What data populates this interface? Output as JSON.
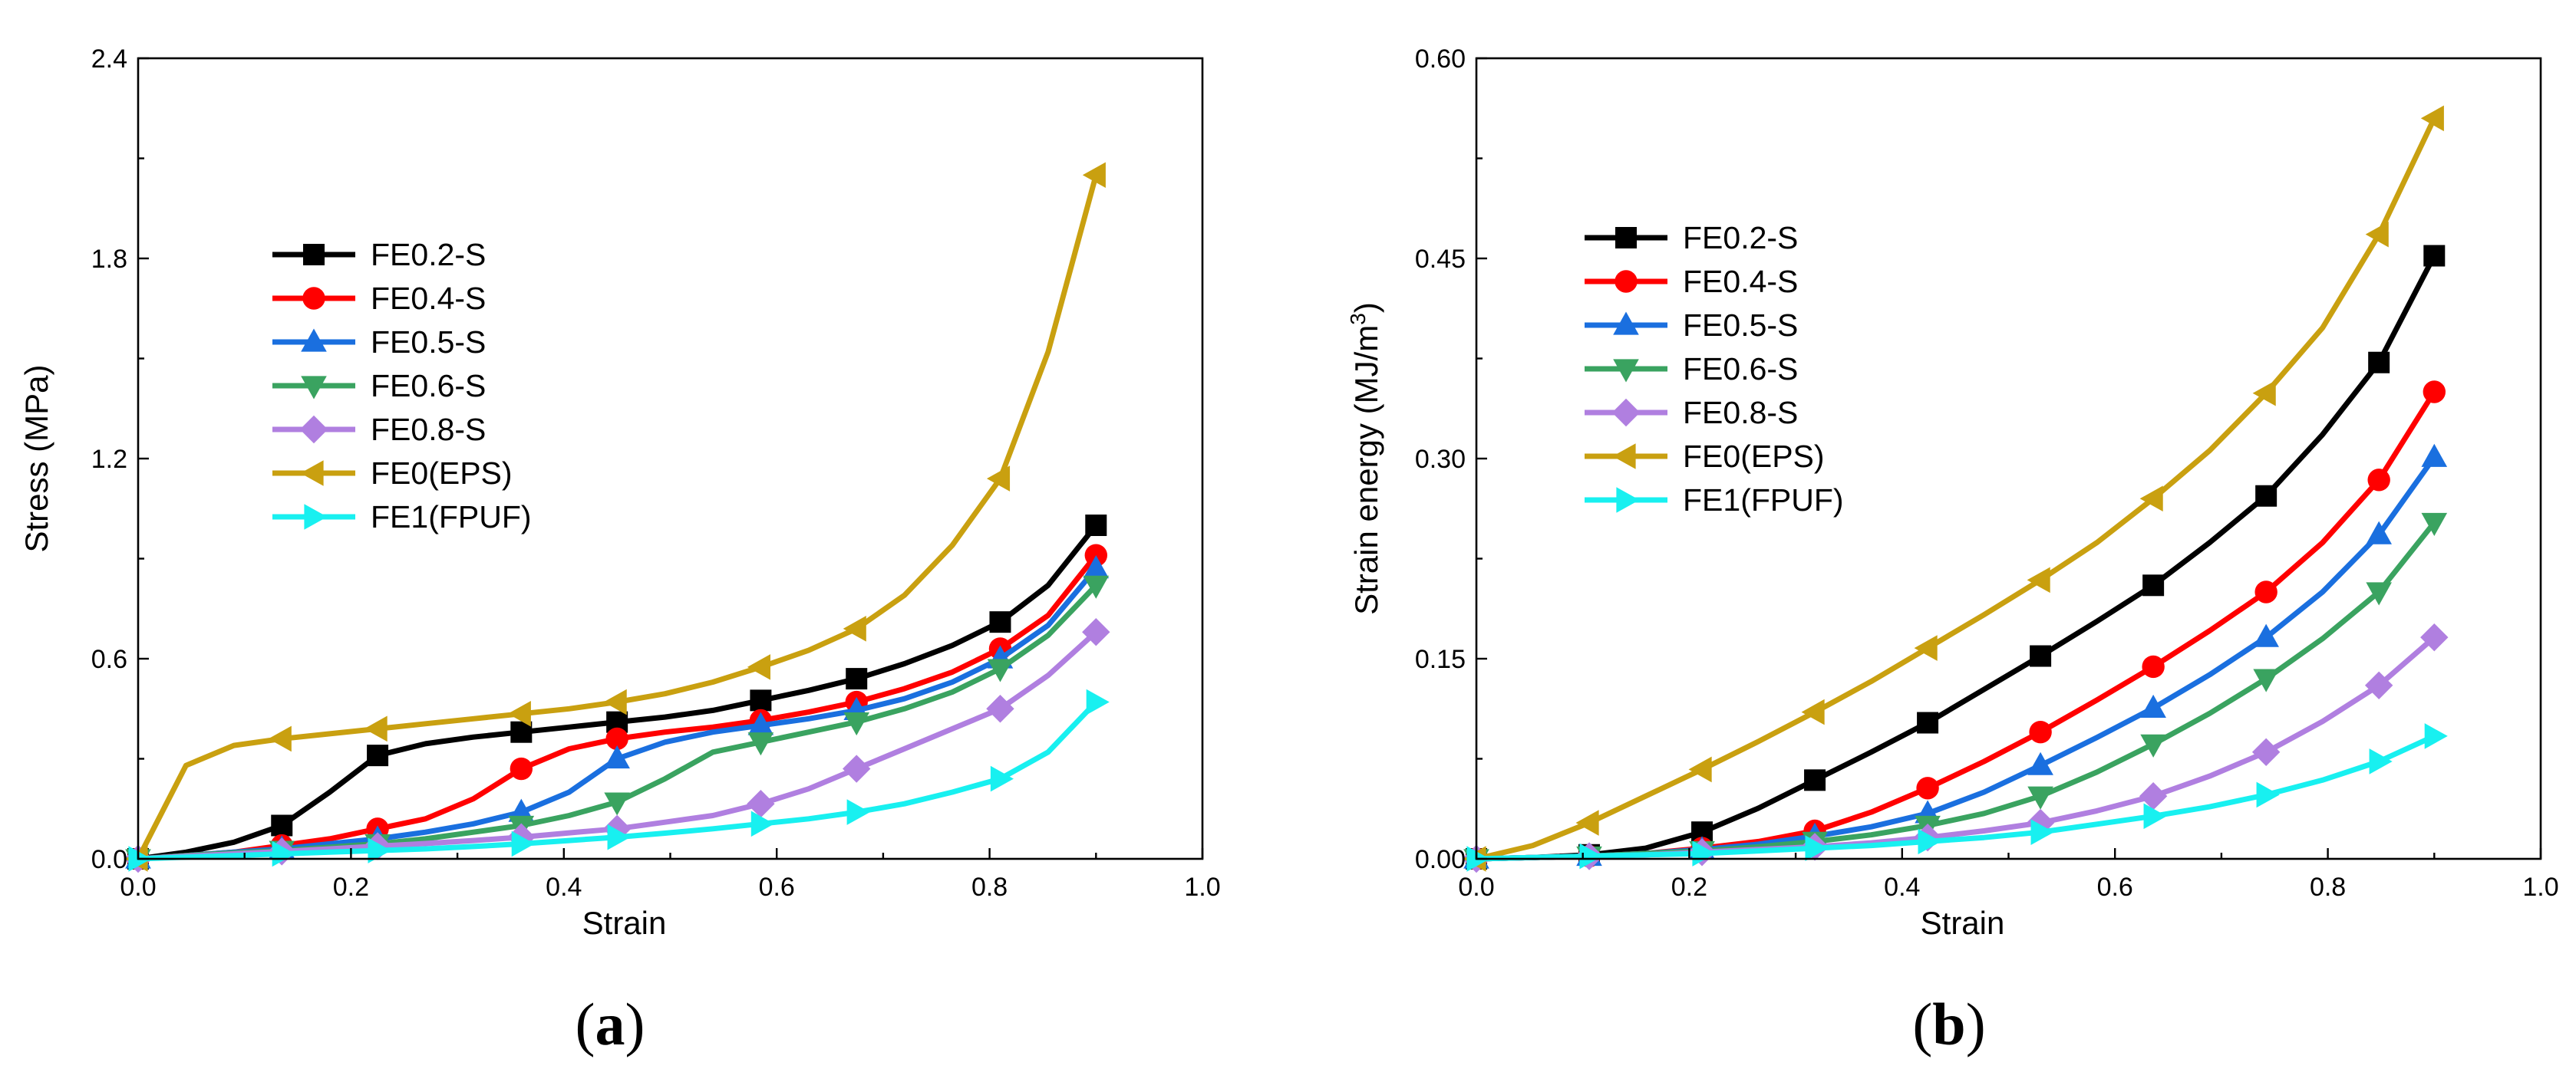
{
  "panels": [
    {
      "id": "a",
      "label_open": "(",
      "label_letter": "a",
      "label_close": ")"
    },
    {
      "id": "b",
      "label_open": "(",
      "label_letter": "b",
      "label_close": ")"
    }
  ],
  "chart_data": [
    {
      "type": "line",
      "panel": "a",
      "title": "",
      "xlabel": "Strain",
      "ylabel": "Stress (MPa)",
      "xlim": [
        0.0,
        1.0
      ],
      "ylim": [
        0.0,
        2.4
      ],
      "xticks": [
        0.0,
        0.2,
        0.4,
        0.6,
        0.8,
        1.0
      ],
      "xtick_labels": [
        "0.0",
        "0.2",
        "0.4",
        "0.6",
        "0.8",
        "1.0"
      ],
      "yticks": [
        0.0,
        0.6,
        1.2,
        1.8,
        2.4
      ],
      "ytick_labels": [
        "0.0",
        "0.6",
        "1.2",
        "1.8",
        "2.4"
      ],
      "legend_position": "upper-left",
      "series": [
        {
          "name": "FE0.2-S",
          "color": "#000000",
          "marker": "square",
          "x": [
            0,
            0.045,
            0.09,
            0.135,
            0.18,
            0.225,
            0.27,
            0.315,
            0.36,
            0.405,
            0.45,
            0.495,
            0.54,
            0.585,
            0.63,
            0.675,
            0.72,
            0.765,
            0.81,
            0.855,
            0.9
          ],
          "y": [
            0,
            0.02,
            0.05,
            0.1,
            0.2,
            0.31,
            0.345,
            0.365,
            0.38,
            0.395,
            0.41,
            0.425,
            0.445,
            0.475,
            0.505,
            0.54,
            0.585,
            0.64,
            0.71,
            0.82,
            1.0
          ],
          "markers": [
            0,
            3,
            5,
            8,
            10,
            13,
            15,
            18,
            20
          ]
        },
        {
          "name": "FE0.4-S",
          "color": "#ff0000",
          "marker": "circle",
          "x": [
            0,
            0.045,
            0.09,
            0.135,
            0.18,
            0.225,
            0.27,
            0.315,
            0.36,
            0.405,
            0.45,
            0.495,
            0.54,
            0.585,
            0.63,
            0.675,
            0.72,
            0.765,
            0.81,
            0.855,
            0.9
          ],
          "y": [
            0,
            0.01,
            0.02,
            0.04,
            0.06,
            0.09,
            0.12,
            0.18,
            0.27,
            0.33,
            0.36,
            0.38,
            0.395,
            0.415,
            0.44,
            0.47,
            0.51,
            0.56,
            0.63,
            0.73,
            0.91
          ],
          "markers": [
            0,
            3,
            5,
            8,
            10,
            13,
            15,
            18,
            20
          ]
        },
        {
          "name": "FE0.5-S",
          "color": "#1a6fdf",
          "marker": "triangle-up",
          "x": [
            0,
            0.045,
            0.09,
            0.135,
            0.18,
            0.225,
            0.27,
            0.315,
            0.36,
            0.405,
            0.45,
            0.495,
            0.54,
            0.585,
            0.63,
            0.675,
            0.72,
            0.765,
            0.81,
            0.855,
            0.9
          ],
          "y": [
            0,
            0.01,
            0.02,
            0.03,
            0.045,
            0.06,
            0.08,
            0.105,
            0.14,
            0.2,
            0.3,
            0.35,
            0.38,
            0.4,
            0.42,
            0.445,
            0.48,
            0.53,
            0.6,
            0.7,
            0.87
          ],
          "markers": [
            0,
            3,
            5,
            8,
            10,
            13,
            15,
            18,
            20
          ]
        },
        {
          "name": "FE0.6-S",
          "color": "#3aa360",
          "marker": "triangle-down",
          "x": [
            0,
            0.045,
            0.09,
            0.135,
            0.18,
            0.225,
            0.27,
            0.315,
            0.36,
            0.405,
            0.45,
            0.495,
            0.54,
            0.585,
            0.63,
            0.675,
            0.72,
            0.765,
            0.81,
            0.855,
            0.9
          ],
          "y": [
            0,
            0.01,
            0.018,
            0.025,
            0.035,
            0.045,
            0.06,
            0.08,
            0.1,
            0.13,
            0.17,
            0.24,
            0.32,
            0.35,
            0.38,
            0.41,
            0.45,
            0.5,
            0.57,
            0.67,
            0.82
          ],
          "markers": [
            0,
            3,
            5,
            8,
            10,
            13,
            15,
            18,
            20
          ]
        },
        {
          "name": "FE0.8-S",
          "color": "#b07fe0",
          "marker": "diamond",
          "x": [
            0,
            0.045,
            0.09,
            0.135,
            0.18,
            0.225,
            0.27,
            0.315,
            0.36,
            0.405,
            0.45,
            0.495,
            0.54,
            0.585,
            0.63,
            0.675,
            0.72,
            0.765,
            0.81,
            0.855,
            0.9
          ],
          "y": [
            0,
            0.008,
            0.015,
            0.022,
            0.03,
            0.038,
            0.046,
            0.055,
            0.065,
            0.078,
            0.09,
            0.11,
            0.13,
            0.165,
            0.21,
            0.27,
            0.33,
            0.39,
            0.45,
            0.55,
            0.68
          ],
          "markers": [
            0,
            3,
            5,
            8,
            10,
            13,
            15,
            18,
            20
          ]
        },
        {
          "name": "FE0(EPS)",
          "color": "#c9a010",
          "marker": "triangle-left",
          "x": [
            0,
            0.045,
            0.09,
            0.135,
            0.18,
            0.225,
            0.27,
            0.315,
            0.36,
            0.405,
            0.45,
            0.495,
            0.54,
            0.585,
            0.63,
            0.675,
            0.72,
            0.765,
            0.81,
            0.855,
            0.9
          ],
          "y": [
            0,
            0.28,
            0.34,
            0.36,
            0.375,
            0.39,
            0.405,
            0.42,
            0.435,
            0.45,
            0.47,
            0.495,
            0.53,
            0.575,
            0.625,
            0.69,
            0.79,
            0.94,
            1.14,
            1.52,
            2.05
          ],
          "markers": [
            0,
            3,
            5,
            8,
            10,
            13,
            15,
            18,
            20
          ]
        },
        {
          "name": "FE1(FPUF)",
          "color": "#18f0f0",
          "marker": "triangle-right",
          "x": [
            0,
            0.045,
            0.09,
            0.135,
            0.18,
            0.225,
            0.27,
            0.315,
            0.36,
            0.405,
            0.45,
            0.495,
            0.54,
            0.585,
            0.63,
            0.675,
            0.72,
            0.765,
            0.81,
            0.855,
            0.9
          ],
          "y": [
            0,
            0.005,
            0.01,
            0.015,
            0.02,
            0.025,
            0.03,
            0.037,
            0.045,
            0.055,
            0.065,
            0.077,
            0.09,
            0.105,
            0.12,
            0.14,
            0.165,
            0.2,
            0.24,
            0.32,
            0.47
          ],
          "markers": [
            0,
            3,
            5,
            8,
            10,
            13,
            15,
            18,
            20
          ]
        }
      ]
    },
    {
      "type": "line",
      "panel": "b",
      "title": "",
      "xlabel": "Strain",
      "ylabel": "Strain energy (MJ/m",
      "ylabel_superscript": "3",
      "ylabel_suffix": ")",
      "xlim": [
        0.0,
        1.0
      ],
      "ylim": [
        0.0,
        0.6
      ],
      "xticks": [
        0.0,
        0.2,
        0.4,
        0.6,
        0.8,
        1.0
      ],
      "xtick_labels": [
        "0.0",
        "0.2",
        "0.4",
        "0.6",
        "0.8",
        "1.0"
      ],
      "yticks": [
        0.0,
        0.15,
        0.3,
        0.45,
        0.6
      ],
      "ytick_labels": [
        "0.00",
        "0.15",
        "0.30",
        "0.45",
        "0.60"
      ],
      "legend_position": "upper-left",
      "series": [
        {
          "name": "FE0.2-S",
          "color": "#000000",
          "marker": "square",
          "x": [
            0,
            0.053,
            0.106,
            0.159,
            0.212,
            0.265,
            0.318,
            0.371,
            0.424,
            0.477,
            0.53,
            0.583,
            0.636,
            0.689,
            0.742,
            0.795,
            0.848,
            0.9
          ],
          "y": [
            0,
            0.001,
            0.003,
            0.008,
            0.02,
            0.038,
            0.059,
            0.08,
            0.102,
            0.127,
            0.152,
            0.178,
            0.205,
            0.237,
            0.272,
            0.318,
            0.372,
            0.452
          ],
          "markers": [
            0,
            2,
            4,
            6,
            8,
            10,
            12,
            14,
            16,
            17
          ]
        },
        {
          "name": "FE0.4-S",
          "color": "#ff0000",
          "marker": "circle",
          "x": [
            0,
            0.053,
            0.106,
            0.159,
            0.212,
            0.265,
            0.318,
            0.371,
            0.424,
            0.477,
            0.53,
            0.583,
            0.636,
            0.689,
            0.742,
            0.795,
            0.848,
            0.9
          ],
          "y": [
            0,
            0.001,
            0.002,
            0.004,
            0.008,
            0.013,
            0.021,
            0.035,
            0.053,
            0.073,
            0.095,
            0.119,
            0.144,
            0.171,
            0.2,
            0.237,
            0.284,
            0.35
          ],
          "markers": [
            0,
            2,
            4,
            6,
            8,
            10,
            12,
            14,
            16,
            17
          ]
        },
        {
          "name": "FE0.5-S",
          "color": "#1a6fdf",
          "marker": "triangle-up",
          "x": [
            0,
            0.053,
            0.106,
            0.159,
            0.212,
            0.265,
            0.318,
            0.371,
            0.424,
            0.477,
            0.53,
            0.583,
            0.636,
            0.689,
            0.742,
            0.795,
            0.848,
            0.9
          ],
          "y": [
            0,
            0.001,
            0.002,
            0.004,
            0.007,
            0.011,
            0.017,
            0.024,
            0.034,
            0.05,
            0.07,
            0.091,
            0.113,
            0.138,
            0.166,
            0.2,
            0.243,
            0.301
          ],
          "markers": [
            0,
            2,
            4,
            6,
            8,
            10,
            12,
            14,
            16,
            17
          ]
        },
        {
          "name": "FE0.6-S",
          "color": "#3aa360",
          "marker": "triangle-down",
          "x": [
            0,
            0.053,
            0.106,
            0.159,
            0.212,
            0.265,
            0.318,
            0.371,
            0.424,
            0.477,
            0.53,
            0.583,
            0.636,
            0.689,
            0.742,
            0.795,
            0.848,
            0.9
          ],
          "y": [
            0,
            0.001,
            0.002,
            0.004,
            0.006,
            0.009,
            0.013,
            0.018,
            0.025,
            0.034,
            0.047,
            0.065,
            0.086,
            0.109,
            0.135,
            0.165,
            0.2,
            0.252
          ],
          "markers": [
            0,
            2,
            4,
            6,
            8,
            10,
            12,
            14,
            16,
            17
          ]
        },
        {
          "name": "FE0.8-S",
          "color": "#b07fe0",
          "marker": "diamond",
          "x": [
            0,
            0.053,
            0.106,
            0.159,
            0.212,
            0.265,
            0.318,
            0.371,
            0.424,
            0.477,
            0.53,
            0.583,
            0.636,
            0.689,
            0.742,
            0.795,
            0.848,
            0.9
          ],
          "y": [
            0,
            0.001,
            0.002,
            0.003,
            0.005,
            0.007,
            0.009,
            0.012,
            0.016,
            0.021,
            0.027,
            0.036,
            0.047,
            0.062,
            0.08,
            0.103,
            0.13,
            0.166
          ],
          "markers": [
            0,
            2,
            4,
            6,
            8,
            10,
            12,
            14,
            16,
            17
          ]
        },
        {
          "name": "FE0(EPS)",
          "color": "#c9a010",
          "marker": "triangle-left",
          "x": [
            0,
            0.053,
            0.106,
            0.159,
            0.212,
            0.265,
            0.318,
            0.371,
            0.424,
            0.477,
            0.53,
            0.583,
            0.636,
            0.689,
            0.742,
            0.795,
            0.848,
            0.9
          ],
          "y": [
            0,
            0.01,
            0.027,
            0.047,
            0.067,
            0.088,
            0.11,
            0.133,
            0.158,
            0.183,
            0.209,
            0.237,
            0.27,
            0.306,
            0.349,
            0.398,
            0.468,
            0.555
          ],
          "markers": [
            0,
            2,
            4,
            6,
            8,
            10,
            12,
            14,
            16,
            17
          ]
        },
        {
          "name": "FE1(FPUF)",
          "color": "#18f0f0",
          "marker": "triangle-right",
          "x": [
            0,
            0.053,
            0.106,
            0.159,
            0.212,
            0.265,
            0.318,
            0.371,
            0.424,
            0.477,
            0.53,
            0.583,
            0.636,
            0.689,
            0.742,
            0.795,
            0.848,
            0.9
          ],
          "y": [
            0,
            0.001,
            0.002,
            0.003,
            0.004,
            0.006,
            0.008,
            0.01,
            0.013,
            0.016,
            0.02,
            0.026,
            0.032,
            0.039,
            0.048,
            0.059,
            0.073,
            0.092
          ],
          "markers": [
            0,
            2,
            4,
            6,
            8,
            10,
            12,
            14,
            16,
            17
          ]
        }
      ]
    }
  ]
}
